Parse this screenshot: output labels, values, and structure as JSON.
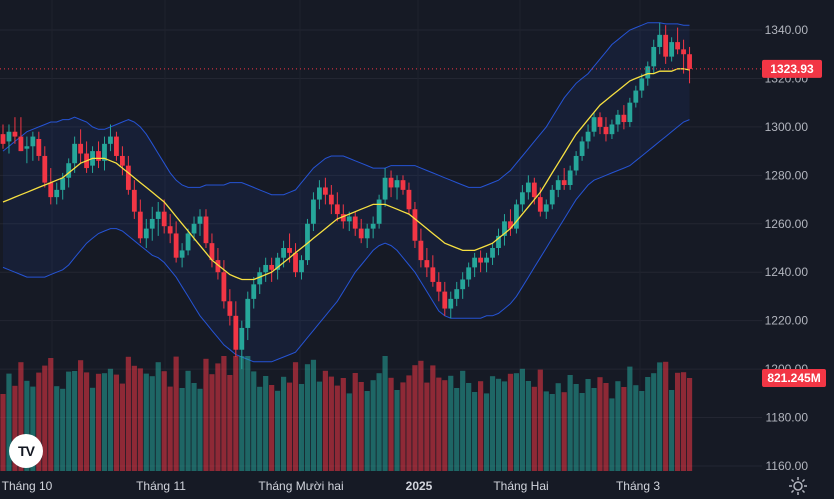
{
  "chart_data": {
    "type": "candlestick",
    "symbol_logo": "TV",
    "price_axis": {
      "ticks": [
        1340,
        1320,
        1300,
        1280,
        1260,
        1240,
        1220,
        1200,
        1180,
        1160
      ],
      "labels": [
        "1340.00",
        "1320.00",
        "1300.00",
        "1280.00",
        "1260.00",
        "1240.00",
        "1220.00",
        "1200.00",
        "1180.00",
        "1160.00"
      ],
      "ylim": [
        1158,
        1347
      ]
    },
    "time_axis": {
      "labels": [
        "Tháng 10",
        "Tháng 11",
        "Tháng Mười hai",
        "2025",
        "Tháng Hai",
        "Tháng 3"
      ]
    },
    "last_price": {
      "value": 1323.93,
      "label": "1323.93",
      "color": "#f23645"
    },
    "last_volume": {
      "label": "821.245M",
      "color": "#f23645"
    },
    "colors": {
      "up": "#26a69a",
      "down": "#f23645",
      "ma": "#f7e041",
      "band": "#2962ff",
      "background": "#161a25"
    },
    "series": [
      {
        "name": "Price OHLC",
        "values": [
          [
            1297,
            1301,
            1291,
            1293
          ],
          [
            1294,
            1301,
            1289,
            1298
          ],
          [
            1298,
            1304,
            1293,
            1296
          ],
          [
            1296,
            1304,
            1290,
            1290
          ],
          [
            1291,
            1296,
            1285,
            1292
          ],
          [
            1292,
            1298,
            1286,
            1296
          ],
          [
            1295,
            1298,
            1286,
            1288
          ],
          [
            1288,
            1292,
            1275,
            1277
          ],
          [
            1277,
            1283,
            1268,
            1271
          ],
          [
            1271,
            1277,
            1268,
            1274
          ],
          [
            1274,
            1281,
            1270,
            1279
          ],
          [
            1279,
            1287,
            1275,
            1285
          ],
          [
            1285,
            1296,
            1281,
            1293
          ],
          [
            1293,
            1299,
            1285,
            1289
          ],
          [
            1289,
            1294,
            1281,
            1283
          ],
          [
            1284,
            1292,
            1281,
            1290
          ],
          [
            1290,
            1294,
            1283,
            1286
          ],
          [
            1286,
            1296,
            1282,
            1293
          ],
          [
            1293,
            1301,
            1290,
            1296
          ],
          [
            1296,
            1298,
            1286,
            1288
          ],
          [
            1288,
            1292,
            1280,
            1284
          ],
          [
            1284,
            1288,
            1272,
            1274
          ],
          [
            1274,
            1278,
            1262,
            1265
          ],
          [
            1265,
            1270,
            1252,
            1254
          ],
          [
            1254,
            1262,
            1250,
            1258
          ],
          [
            1258,
            1267,
            1253,
            1262
          ],
          [
            1262,
            1269,
            1255,
            1265
          ],
          [
            1265,
            1270,
            1256,
            1259
          ],
          [
            1259,
            1264,
            1252,
            1256
          ],
          [
            1256,
            1261,
            1244,
            1246
          ],
          [
            1246,
            1252,
            1242,
            1249
          ],
          [
            1249,
            1258,
            1247,
            1256
          ],
          [
            1256,
            1263,
            1253,
            1260
          ],
          [
            1260,
            1266,
            1255,
            1263
          ],
          [
            1263,
            1266,
            1250,
            1252
          ],
          [
            1252,
            1256,
            1242,
            1245
          ],
          [
            1245,
            1250,
            1237,
            1240
          ],
          [
            1240,
            1245,
            1225,
            1228
          ],
          [
            1228,
            1233,
            1218,
            1222
          ],
          [
            1222,
            1228,
            1205,
            1208
          ],
          [
            1208,
            1220,
            1200,
            1217
          ],
          [
            1217,
            1232,
            1212,
            1229
          ],
          [
            1229,
            1238,
            1225,
            1235
          ],
          [
            1235,
            1242,
            1231,
            1240
          ],
          [
            1240,
            1246,
            1236,
            1243
          ],
          [
            1243,
            1246,
            1236,
            1241
          ],
          [
            1241,
            1248,
            1237,
            1246
          ],
          [
            1246,
            1253,
            1242,
            1250
          ],
          [
            1250,
            1256,
            1244,
            1248
          ],
          [
            1248,
            1252,
            1238,
            1240
          ],
          [
            1240,
            1247,
            1237,
            1245
          ],
          [
            1245,
            1262,
            1243,
            1260
          ],
          [
            1260,
            1273,
            1257,
            1270
          ],
          [
            1270,
            1278,
            1266,
            1275
          ],
          [
            1275,
            1279,
            1268,
            1272
          ],
          [
            1272,
            1276,
            1264,
            1268
          ],
          [
            1268,
            1273,
            1261,
            1264
          ],
          [
            1264,
            1268,
            1258,
            1261
          ],
          [
            1261,
            1265,
            1257,
            1263
          ],
          [
            1263,
            1265,
            1255,
            1258
          ],
          [
            1258,
            1262,
            1252,
            1254
          ],
          [
            1254,
            1260,
            1250,
            1258
          ],
          [
            1258,
            1263,
            1254,
            1260
          ],
          [
            1260,
            1272,
            1258,
            1270
          ],
          [
            1270,
            1283,
            1267,
            1279
          ],
          [
            1279,
            1282,
            1271,
            1275
          ],
          [
            1275,
            1280,
            1270,
            1278
          ],
          [
            1278,
            1280,
            1272,
            1274
          ],
          [
            1274,
            1277,
            1264,
            1266
          ],
          [
            1266,
            1269,
            1250,
            1253
          ],
          [
            1253,
            1258,
            1242,
            1245
          ],
          [
            1245,
            1250,
            1238,
            1242
          ],
          [
            1242,
            1247,
            1234,
            1236
          ],
          [
            1236,
            1240,
            1228,
            1232
          ],
          [
            1232,
            1236,
            1222,
            1225
          ],
          [
            1225,
            1232,
            1221,
            1229
          ],
          [
            1229,
            1236,
            1226,
            1233
          ],
          [
            1233,
            1240,
            1229,
            1237
          ],
          [
            1237,
            1244,
            1234,
            1242
          ],
          [
            1242,
            1248,
            1238,
            1246
          ],
          [
            1246,
            1249,
            1240,
            1244
          ],
          [
            1244,
            1248,
            1240,
            1246
          ],
          [
            1246,
            1252,
            1243,
            1250
          ],
          [
            1250,
            1258,
            1247,
            1255
          ],
          [
            1255,
            1264,
            1251,
            1261
          ],
          [
            1261,
            1266,
            1255,
            1258
          ],
          [
            1258,
            1270,
            1256,
            1268
          ],
          [
            1268,
            1276,
            1265,
            1273
          ],
          [
            1273,
            1280,
            1270,
            1277
          ],
          [
            1277,
            1279,
            1268,
            1271
          ],
          [
            1271,
            1275,
            1263,
            1265
          ],
          [
            1265,
            1270,
            1262,
            1268
          ],
          [
            1268,
            1276,
            1266,
            1274
          ],
          [
            1274,
            1280,
            1271,
            1278
          ],
          [
            1278,
            1283,
            1274,
            1276
          ],
          [
            1276,
            1284,
            1274,
            1282
          ],
          [
            1282,
            1290,
            1280,
            1288
          ],
          [
            1288,
            1296,
            1286,
            1294
          ],
          [
            1294,
            1301,
            1291,
            1298
          ],
          [
            1298,
            1306,
            1296,
            1304
          ],
          [
            1304,
            1306,
            1297,
            1300
          ],
          [
            1300,
            1304,
            1294,
            1297
          ],
          [
            1297,
            1303,
            1295,
            1301
          ],
          [
            1301,
            1307,
            1298,
            1305
          ],
          [
            1305,
            1309,
            1299,
            1302
          ],
          [
            1302,
            1312,
            1300,
            1310
          ],
          [
            1310,
            1317,
            1308,
            1315
          ],
          [
            1315,
            1322,
            1312,
            1320
          ],
          [
            1320,
            1327,
            1317,
            1325
          ],
          [
            1325,
            1336,
            1322,
            1333
          ],
          [
            1333,
            1343,
            1330,
            1338
          ],
          [
            1338,
            1342,
            1326,
            1329
          ],
          [
            1329,
            1337,
            1327,
            1335
          ],
          [
            1335,
            1341,
            1330,
            1332
          ],
          [
            1332,
            1336,
            1322,
            1330
          ],
          [
            1330,
            1333,
            1318,
            1323.93
          ]
        ]
      },
      {
        "name": "MA",
        "values": [
          1269,
          1270,
          1271,
          1272,
          1273,
          1274,
          1275,
          1276,
          1277,
          1278,
          1279,
          1281,
          1283,
          1285,
          1286,
          1287,
          1287,
          1287,
          1286,
          1285,
          1283,
          1281,
          1279,
          1277,
          1275,
          1273,
          1271,
          1269,
          1266,
          1263,
          1260,
          1257,
          1254,
          1251,
          1248,
          1245,
          1243,
          1241,
          1239,
          1238,
          1237,
          1237,
          1237,
          1238,
          1239,
          1240,
          1242,
          1244,
          1246,
          1248,
          1250,
          1252,
          1254,
          1256,
          1258,
          1260,
          1262,
          1263,
          1264,
          1265,
          1266,
          1267,
          1268,
          1268,
          1268,
          1267,
          1266,
          1265,
          1264,
          1262,
          1260,
          1258,
          1256,
          1254,
          1252,
          1251,
          1250,
          1249,
          1249,
          1249,
          1250,
          1251,
          1252,
          1254,
          1256,
          1258,
          1261,
          1264,
          1267,
          1270,
          1273,
          1277,
          1281,
          1285,
          1289,
          1293,
          1297,
          1300,
          1303,
          1306,
          1309,
          1311,
          1313,
          1315,
          1317,
          1319,
          1320,
          1321,
          1322,
          1322,
          1323,
          1323,
          1323,
          1324,
          1324,
          1323.5
        ]
      },
      {
        "name": "Upper band",
        "values": [
          1290,
          1292,
          1294,
          1296,
          1298,
          1299,
          1300,
          1301,
          1302,
          1302,
          1303,
          1303,
          1304,
          1303,
          1302,
          1300,
          1299,
          1299,
          1300,
          1301,
          1302,
          1303,
          1302,
          1300,
          1297,
          1293,
          1289,
          1285,
          1281,
          1278,
          1276,
          1275,
          1275,
          1275,
          1276,
          1276,
          1276,
          1276,
          1277,
          1277,
          1277,
          1276,
          1275,
          1274,
          1273,
          1272,
          1272,
          1272,
          1273,
          1274,
          1277,
          1280,
          1283,
          1285,
          1287,
          1288,
          1288,
          1288,
          1287,
          1286,
          1285,
          1284,
          1283,
          1283,
          1283,
          1284,
          1284,
          1284,
          1284,
          1284,
          1283,
          1282,
          1281,
          1280,
          1279,
          1278,
          1277,
          1276,
          1275,
          1275,
          1275,
          1276,
          1277,
          1278,
          1280,
          1282,
          1285,
          1288,
          1291,
          1294,
          1297,
          1300,
          1304,
          1308,
          1312,
          1315,
          1318,
          1320,
          1322,
          1325,
          1328,
          1331,
          1334,
          1336,
          1338,
          1340,
          1341,
          1342,
          1343,
          1343,
          1343,
          1342.5,
          1342.5,
          1342.5,
          1342,
          1342
        ]
      },
      {
        "name": "Lower band",
        "values": [
          1242,
          1241,
          1240,
          1239,
          1238,
          1238,
          1238,
          1238,
          1239,
          1240,
          1241,
          1243,
          1246,
          1249,
          1252,
          1254,
          1256,
          1257,
          1258,
          1258,
          1257,
          1255,
          1253,
          1251,
          1249,
          1247,
          1246,
          1244,
          1241,
          1238,
          1234,
          1230,
          1226,
          1222,
          1219,
          1216,
          1213,
          1210,
          1208,
          1206,
          1205,
          1204,
          1203,
          1203,
          1203,
          1203,
          1204,
          1205,
          1206,
          1207,
          1210,
          1213,
          1216,
          1219,
          1222,
          1225,
          1228,
          1232,
          1236,
          1240,
          1243,
          1246,
          1249,
          1251,
          1252,
          1251,
          1249,
          1246,
          1243,
          1240,
          1236,
          1232,
          1228,
          1224,
          1222,
          1221,
          1221,
          1221,
          1221,
          1221,
          1221,
          1222,
          1222,
          1223,
          1225,
          1227,
          1230,
          1234,
          1238,
          1242,
          1246,
          1250,
          1254,
          1258,
          1262,
          1266,
          1270,
          1273,
          1276,
          1278,
          1279,
          1280,
          1281,
          1282,
          1283,
          1284,
          1286,
          1288,
          1290,
          1292,
          1294,
          1296,
          1298,
          1300,
          1302,
          1303
        ]
      }
    ]
  }
}
